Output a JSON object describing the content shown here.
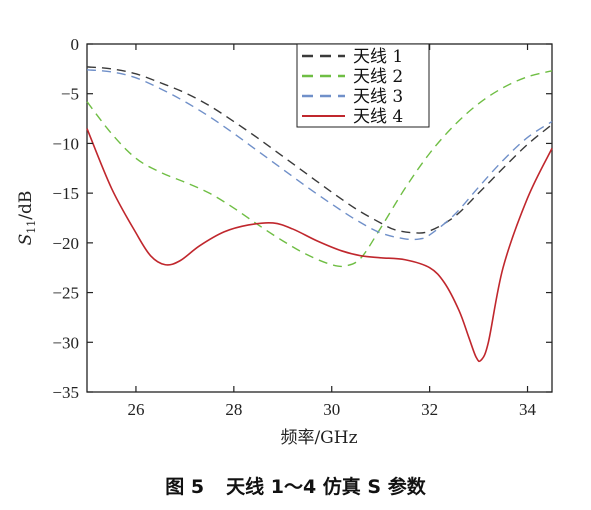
{
  "chart_data": {
    "type": "line",
    "xlabel": "频率/GHz",
    "ylabel": "S11/dB",
    "ylabel_main": "S",
    "ylabel_sub": "11",
    "ylabel_unit": "/dB",
    "xlim": [
      25,
      34.5
    ],
    "ylim": [
      -35,
      0
    ],
    "xticks": [
      26,
      28,
      30,
      32,
      34
    ],
    "xtick_labels": [
      "26",
      "28",
      "30",
      "32",
      "34"
    ],
    "yticks": [
      0,
      -5,
      -10,
      -15,
      -20,
      -25,
      -30,
      -35
    ],
    "ytick_labels": [
      "0",
      "−5",
      "−10",
      "−15",
      "−20",
      "−25",
      "−30",
      "−35"
    ],
    "grid": false,
    "legend_position": "top-center",
    "series": [
      {
        "name": "天线 1",
        "color": "#3a3a3a",
        "dash": "dashed",
        "x": [
          25,
          25.5,
          26,
          26.5,
          27,
          27.5,
          28,
          28.5,
          29,
          29.5,
          30,
          30.5,
          31,
          31.3,
          31.7,
          32,
          32.5,
          33,
          33.5,
          34,
          34.5
        ],
        "y": [
          -2.3,
          -2.5,
          -3.0,
          -3.9,
          -4.9,
          -6.2,
          -7.8,
          -9.5,
          -11.3,
          -13.1,
          -14.9,
          -16.6,
          -18.0,
          -18.7,
          -19.0,
          -18.8,
          -17.4,
          -15.0,
          -12.5,
          -10.1,
          -8.1
        ]
      },
      {
        "name": "天线 2",
        "color": "#6fbe44",
        "dash": "dashed",
        "x": [
          25,
          25.5,
          26,
          26.5,
          27,
          27.5,
          28,
          28.5,
          29,
          29.5,
          30,
          30.3,
          30.6,
          31,
          31.5,
          32,
          32.5,
          33,
          33.5,
          34,
          34.5
        ],
        "y": [
          -5.8,
          -9.0,
          -11.5,
          -12.9,
          -13.9,
          -15.0,
          -16.5,
          -18.2,
          -19.8,
          -21.2,
          -22.2,
          -22.3,
          -21.5,
          -18.5,
          -14.5,
          -11.0,
          -8.2,
          -6.0,
          -4.4,
          -3.3,
          -2.7
        ]
      },
      {
        "name": "天线 3",
        "color": "#7090c9",
        "dash": "dashed",
        "x": [
          25,
          25.5,
          26,
          26.5,
          27,
          27.5,
          28,
          28.5,
          29,
          29.5,
          30,
          30.5,
          31,
          31.5,
          31.8,
          32,
          32.5,
          33,
          33.5,
          34,
          34.5
        ],
        "y": [
          -2.6,
          -2.8,
          -3.4,
          -4.5,
          -5.8,
          -7.3,
          -9.0,
          -10.8,
          -12.6,
          -14.4,
          -16.1,
          -17.7,
          -19.0,
          -19.6,
          -19.6,
          -19.2,
          -17.2,
          -14.4,
          -11.7,
          -9.4,
          -7.8
        ]
      },
      {
        "name": "天线 4",
        "color": "#c0272d",
        "dash": "solid",
        "x": [
          25,
          25.5,
          26,
          26.3,
          26.6,
          26.9,
          27.3,
          27.8,
          28.3,
          28.8,
          29.2,
          29.7,
          30.2,
          30.6,
          31,
          31.5,
          32,
          32.3,
          32.6,
          32.8,
          32.95,
          33.05,
          33.2,
          33.5,
          34,
          34.5
        ],
        "y": [
          -8.5,
          -14.5,
          -19.0,
          -21.3,
          -22.2,
          -21.8,
          -20.3,
          -18.9,
          -18.2,
          -18.0,
          -18.6,
          -19.8,
          -20.8,
          -21.3,
          -21.5,
          -21.7,
          -22.5,
          -24.0,
          -26.8,
          -29.5,
          -31.5,
          -31.8,
          -30.0,
          -22.5,
          -15.5,
          -10.5
        ]
      }
    ]
  },
  "caption": {
    "figure_label": "图 5",
    "text": "天线 1～4 仿真 S 参数"
  }
}
